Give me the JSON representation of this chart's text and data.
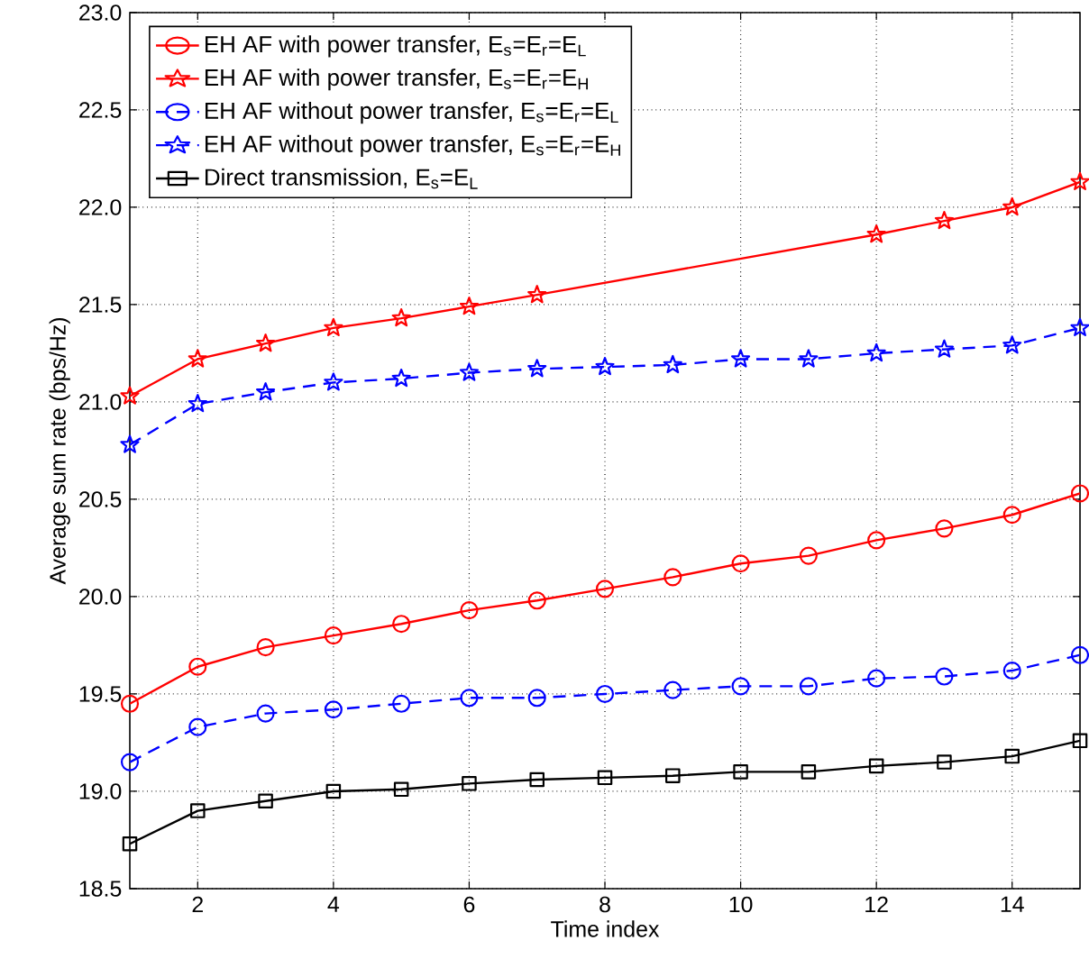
{
  "chart_data": {
    "type": "line",
    "xlabel": "Time index",
    "ylabel": "Average sum rate (bps/Hz)",
    "x": [
      1,
      2,
      3,
      4,
      5,
      6,
      7,
      8,
      9,
      10,
      11,
      12,
      13,
      14,
      15
    ],
    "xlim": [
      1,
      15
    ],
    "xticks": [
      2,
      4,
      6,
      8,
      10,
      12,
      14
    ],
    "ylim": [
      18.5,
      23
    ],
    "yticks": [
      {
        "value": 18.5,
        "label": "18.5"
      },
      {
        "value": 19,
        "label": "19.0"
      },
      {
        "value": 19.5,
        "label": "19.5"
      },
      {
        "value": 20,
        "label": "20.0"
      },
      {
        "value": 20.5,
        "label": "20.5"
      },
      {
        "value": 21,
        "label": "21.0"
      },
      {
        "value": 21.5,
        "label": "21.5"
      },
      {
        "value": 22,
        "label": "22.0"
      },
      {
        "value": 22.5,
        "label": "22.5"
      },
      {
        "value": 23,
        "label": "23.0"
      }
    ],
    "grid": true,
    "legend": "top left",
    "series": [
      {
        "name": "EH AF with power transfer, E$_{s}$=E$_{r}$=E$_{L}$",
        "color": "#ff0000",
        "marker": "circle",
        "line_style": "solid",
        "values": [
          19.45,
          19.64,
          19.74,
          19.8,
          19.86,
          19.93,
          19.98,
          20.04,
          20.1,
          20.17,
          20.21,
          20.29,
          20.35,
          20.42,
          20.53
        ]
      },
      {
        "name": "EH AF with power transfer, E$_{s}$=E$_{r}$=E$_{H}$",
        "color": "#ff0000",
        "marker": "star",
        "line_style": "solid",
        "values": [
          21.03,
          21.22,
          21.3,
          21.38,
          21.43,
          21.49,
          21.55,
          null,
          null,
          null,
          null,
          21.86,
          21.93,
          22.0,
          22.13
        ]
      },
      {
        "name": "EH AF without power transfer, E$_{s}$=E$_{r}$=E$_{L}$",
        "color": "#0000ff",
        "marker": "circle",
        "line_style": "dashed",
        "values": [
          19.15,
          19.33,
          19.4,
          19.42,
          19.45,
          19.48,
          19.48,
          19.5,
          19.52,
          19.54,
          19.54,
          19.58,
          19.59,
          19.62,
          19.7
        ]
      },
      {
        "name": "EH AF without power transfer, E$_{s}$=E$_{r}$=E$_{H}$",
        "color": "#0000ff",
        "marker": "star",
        "line_style": "dashed",
        "values": [
          20.78,
          20.99,
          21.05,
          21.1,
          21.12,
          21.15,
          21.17,
          21.18,
          21.19,
          21.22,
          21.22,
          21.25,
          21.27,
          21.29,
          21.38
        ]
      },
      {
        "name": "Direct transmission, E$_{s}$=E$_{L}$",
        "color": "#000000",
        "marker": "square",
        "line_style": "solid",
        "values": [
          18.73,
          18.9,
          18.95,
          19.0,
          19.01,
          19.04,
          19.06,
          19.07,
          19.08,
          19.1,
          19.1,
          19.13,
          19.15,
          19.18,
          19.26
        ]
      }
    ]
  }
}
